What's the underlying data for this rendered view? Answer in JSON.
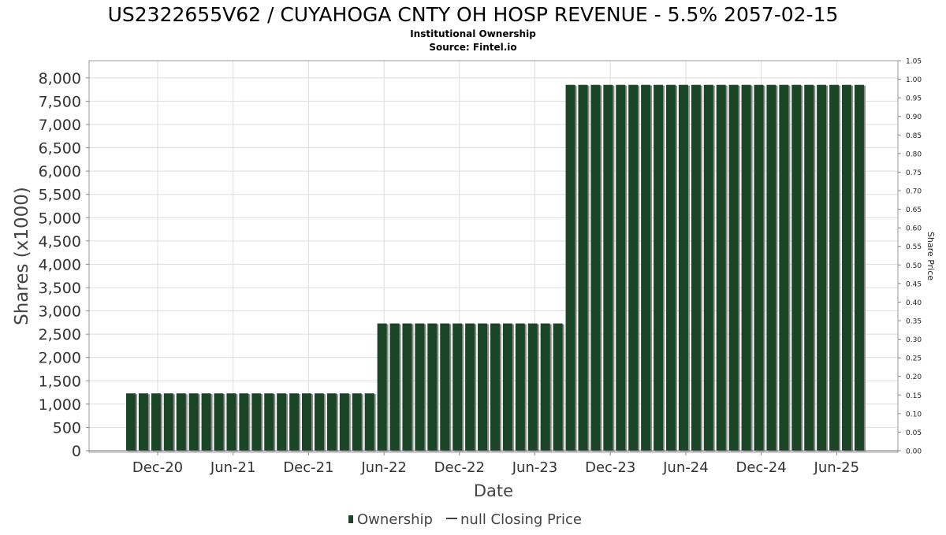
{
  "chart_data": {
    "type": "bar",
    "title": "US2322655V62 / CUYAHOGA CNTY OH HOSP REVENUE - 5.5% 2057-02-15",
    "subtitle": "Institutional Ownership",
    "source": "Source: Fintel.io",
    "xlabel": "Date",
    "ylabel": "Shares (x1000)",
    "y2label": "Share Price",
    "ylim": [
      0,
      8200
    ],
    "y2lim": [
      0,
      1.05
    ],
    "yticks": [
      "0",
      "500",
      "1,000",
      "1,500",
      "2,000",
      "2,500",
      "3,000",
      "3,500",
      "4,000",
      "4,500",
      "5,000",
      "5,500",
      "6,000",
      "6,500",
      "7,000",
      "7,500",
      "8,000"
    ],
    "y2ticks": [
      "0.00",
      "0.05",
      "0.10",
      "0.15",
      "0.20",
      "0.25",
      "0.30",
      "0.35",
      "0.40",
      "0.45",
      "0.50",
      "0.55",
      "0.60",
      "0.65",
      "0.70",
      "0.75",
      "0.80",
      "0.85",
      "0.90",
      "0.95",
      "1.00",
      "1.05"
    ],
    "xticks": [
      "Dec-20",
      "Jun-21",
      "Dec-21",
      "Jun-22",
      "Dec-22",
      "Jun-23",
      "Dec-23",
      "Jun-24",
      "Dec-24",
      "Jun-25"
    ],
    "grid": true,
    "legend_position": "bottom-center",
    "legend": {
      "ownership": "Ownership",
      "closing_price": "null Closing Price"
    },
    "colors": {
      "bar": "#1b4527",
      "bar_shadow": "#8a8a8a",
      "grid": "#dddddd"
    },
    "series": [
      {
        "name": "Ownership",
        "values": [
          1230,
          1230,
          1230,
          1230,
          1230,
          1230,
          1230,
          1230,
          1230,
          1230,
          1230,
          1230,
          1230,
          1230,
          1230,
          1230,
          1230,
          1230,
          1230,
          1230,
          2730,
          2730,
          2730,
          2730,
          2730,
          2730,
          2730,
          2730,
          2730,
          2730,
          2730,
          2730,
          2730,
          2730,
          2730,
          7850,
          7850,
          7850,
          7850,
          7850,
          7850,
          7850,
          7850,
          7850,
          7850,
          7850,
          7850,
          7850,
          7850,
          7850,
          7850,
          7850,
          7850,
          7850,
          7850,
          7850,
          7850,
          7850,
          7850
        ]
      }
    ]
  }
}
